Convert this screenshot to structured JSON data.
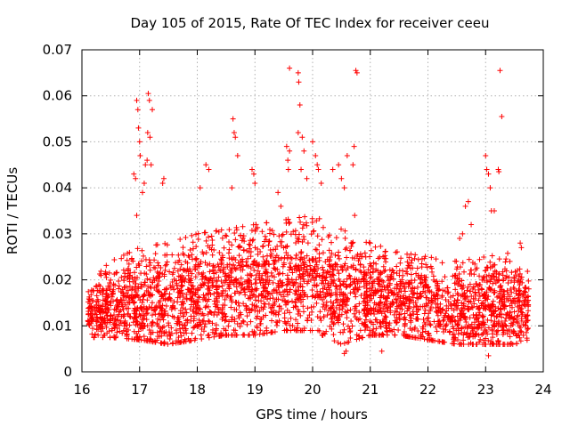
{
  "chart_data": {
    "type": "scatter",
    "title": "Day 105 of 2015, Rate Of TEC Index for receiver ceeu",
    "xlabel": "GPS time / hours",
    "ylabel": "ROTI / TECUs",
    "xlim": [
      16,
      24
    ],
    "ylim": [
      0,
      0.07
    ],
    "xticks": [
      "16",
      "17",
      "18",
      "19",
      "20",
      "21",
      "22",
      "23",
      "24"
    ],
    "yticks": [
      "0",
      "0.01",
      "0.02",
      "0.03",
      "0.04",
      "0.05",
      "0.06",
      "0.07"
    ],
    "marker": "+",
    "color": "#ff0000",
    "grid": true,
    "x_range_observed": [
      16.1,
      23.75
    ],
    "baseline_envelope": [
      {
        "x": 16.1,
        "low": 0.0075,
        "high": 0.02
      },
      {
        "x": 16.5,
        "low": 0.0075,
        "high": 0.024
      },
      {
        "x": 17.0,
        "low": 0.007,
        "high": 0.027
      },
      {
        "x": 17.5,
        "low": 0.006,
        "high": 0.028
      },
      {
        "x": 18.0,
        "low": 0.007,
        "high": 0.03
      },
      {
        "x": 18.5,
        "low": 0.008,
        "high": 0.031
      },
      {
        "x": 19.0,
        "low": 0.008,
        "high": 0.032
      },
      {
        "x": 19.5,
        "low": 0.009,
        "high": 0.033
      },
      {
        "x": 20.0,
        "low": 0.009,
        "high": 0.034
      },
      {
        "x": 20.5,
        "low": 0.006,
        "high": 0.031
      },
      {
        "x": 21.0,
        "low": 0.008,
        "high": 0.028
      },
      {
        "x": 21.5,
        "low": 0.008,
        "high": 0.026
      },
      {
        "x": 22.0,
        "low": 0.007,
        "high": 0.025
      },
      {
        "x": 22.5,
        "low": 0.006,
        "high": 0.024
      },
      {
        "x": 23.0,
        "low": 0.006,
        "high": 0.025
      },
      {
        "x": 23.5,
        "low": 0.006,
        "high": 0.026
      },
      {
        "x": 23.75,
        "low": 0.007,
        "high": 0.022
      }
    ],
    "notable_points": [
      {
        "x": 16.95,
        "y": 0.059
      },
      {
        "x": 16.97,
        "y": 0.057
      },
      {
        "x": 16.98,
        "y": 0.053
      },
      {
        "x": 17.0,
        "y": 0.05
      },
      {
        "x": 17.01,
        "y": 0.047
      },
      {
        "x": 16.9,
        "y": 0.043
      },
      {
        "x": 16.93,
        "y": 0.042
      },
      {
        "x": 16.95,
        "y": 0.034
      },
      {
        "x": 17.05,
        "y": 0.039
      },
      {
        "x": 17.08,
        "y": 0.041
      },
      {
        "x": 17.1,
        "y": 0.045
      },
      {
        "x": 17.13,
        "y": 0.046
      },
      {
        "x": 17.15,
        "y": 0.0605
      },
      {
        "x": 17.17,
        "y": 0.059
      },
      {
        "x": 17.14,
        "y": 0.052
      },
      {
        "x": 17.18,
        "y": 0.051
      },
      {
        "x": 17.22,
        "y": 0.057
      },
      {
        "x": 17.2,
        "y": 0.045
      },
      {
        "x": 17.4,
        "y": 0.041
      },
      {
        "x": 17.42,
        "y": 0.042
      },
      {
        "x": 18.15,
        "y": 0.045
      },
      {
        "x": 18.2,
        "y": 0.044
      },
      {
        "x": 18.05,
        "y": 0.04
      },
      {
        "x": 18.62,
        "y": 0.055
      },
      {
        "x": 18.64,
        "y": 0.052
      },
      {
        "x": 18.66,
        "y": 0.051
      },
      {
        "x": 18.6,
        "y": 0.04
      },
      {
        "x": 18.7,
        "y": 0.047
      },
      {
        "x": 18.95,
        "y": 0.044
      },
      {
        "x": 18.98,
        "y": 0.043
      },
      {
        "x": 19.0,
        "y": 0.041
      },
      {
        "x": 19.4,
        "y": 0.039
      },
      {
        "x": 19.45,
        "y": 0.036
      },
      {
        "x": 19.55,
        "y": 0.049
      },
      {
        "x": 19.57,
        "y": 0.046
      },
      {
        "x": 19.6,
        "y": 0.048
      },
      {
        "x": 19.58,
        "y": 0.044
      },
      {
        "x": 19.6,
        "y": 0.066
      },
      {
        "x": 19.75,
        "y": 0.065
      },
      {
        "x": 19.76,
        "y": 0.063
      },
      {
        "x": 19.78,
        "y": 0.058
      },
      {
        "x": 19.75,
        "y": 0.052
      },
      {
        "x": 19.82,
        "y": 0.051
      },
      {
        "x": 19.85,
        "y": 0.048
      },
      {
        "x": 19.8,
        "y": 0.044
      },
      {
        "x": 19.9,
        "y": 0.042
      },
      {
        "x": 20.0,
        "y": 0.05
      },
      {
        "x": 20.05,
        "y": 0.047
      },
      {
        "x": 20.08,
        "y": 0.045
      },
      {
        "x": 20.1,
        "y": 0.044
      },
      {
        "x": 20.15,
        "y": 0.041
      },
      {
        "x": 20.35,
        "y": 0.044
      },
      {
        "x": 20.45,
        "y": 0.045
      },
      {
        "x": 20.5,
        "y": 0.042
      },
      {
        "x": 20.55,
        "y": 0.04
      },
      {
        "x": 20.6,
        "y": 0.047
      },
      {
        "x": 20.7,
        "y": 0.045
      },
      {
        "x": 20.72,
        "y": 0.049
      },
      {
        "x": 20.75,
        "y": 0.0655
      },
      {
        "x": 20.77,
        "y": 0.065
      },
      {
        "x": 20.73,
        "y": 0.034
      },
      {
        "x": 20.55,
        "y": 0.004
      },
      {
        "x": 20.58,
        "y": 0.0045
      },
      {
        "x": 21.2,
        "y": 0.0045
      },
      {
        "x": 22.65,
        "y": 0.036
      },
      {
        "x": 22.7,
        "y": 0.037
      },
      {
        "x": 22.55,
        "y": 0.029
      },
      {
        "x": 22.6,
        "y": 0.03
      },
      {
        "x": 22.75,
        "y": 0.032
      },
      {
        "x": 23.0,
        "y": 0.047
      },
      {
        "x": 23.02,
        "y": 0.044
      },
      {
        "x": 23.05,
        "y": 0.043
      },
      {
        "x": 23.08,
        "y": 0.04
      },
      {
        "x": 23.1,
        "y": 0.035
      },
      {
        "x": 23.15,
        "y": 0.035
      },
      {
        "x": 23.25,
        "y": 0.0655
      },
      {
        "x": 23.28,
        "y": 0.0555
      },
      {
        "x": 23.22,
        "y": 0.044
      },
      {
        "x": 23.23,
        "y": 0.0435
      },
      {
        "x": 23.05,
        "y": 0.0035
      },
      {
        "x": 23.6,
        "y": 0.028
      },
      {
        "x": 23.62,
        "y": 0.027
      }
    ]
  }
}
